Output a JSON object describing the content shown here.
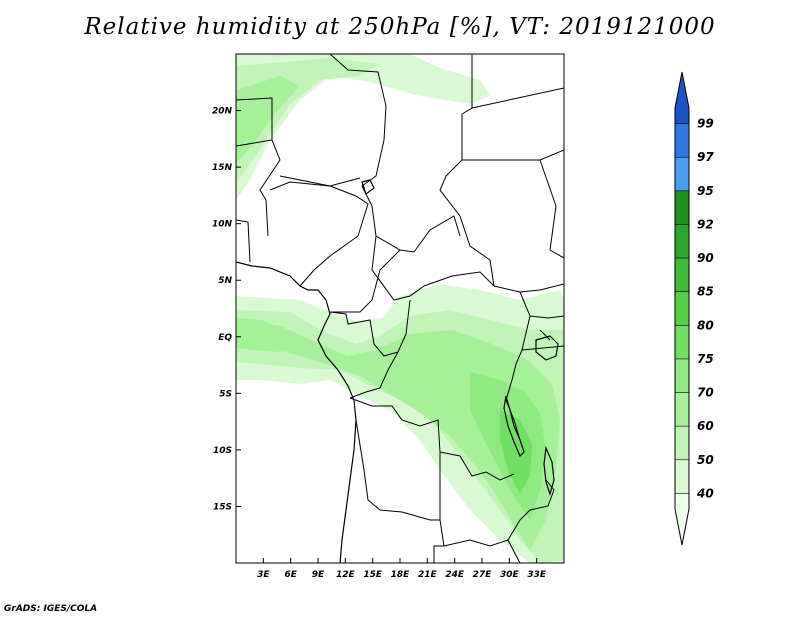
{
  "title": "Relative humidity at 250hPa [%], VT: 2019121000",
  "credit": "GrADS: IGES/COLA",
  "map": {
    "lon_range": [
      0,
      36
    ],
    "lat_range": [
      -20,
      25
    ],
    "lon_ticks": [
      {
        "value": 3,
        "label": "3E"
      },
      {
        "value": 6,
        "label": "6E"
      },
      {
        "value": 9,
        "label": "9E"
      },
      {
        "value": 12,
        "label": "12E"
      },
      {
        "value": 15,
        "label": "15E"
      },
      {
        "value": 18,
        "label": "18E"
      },
      {
        "value": 21,
        "label": "21E"
      },
      {
        "value": 24,
        "label": "24E"
      },
      {
        "value": 27,
        "label": "27E"
      },
      {
        "value": 30,
        "label": "30E"
      },
      {
        "value": 33,
        "label": "33E"
      }
    ],
    "lat_ticks": [
      {
        "value": 20,
        "label": "20N"
      },
      {
        "value": 15,
        "label": "15N"
      },
      {
        "value": 10,
        "label": "10N"
      },
      {
        "value": 5,
        "label": "5N"
      },
      {
        "value": 0,
        "label": "EQ"
      },
      {
        "value": -5,
        "label": "5S"
      },
      {
        "value": -10,
        "label": "10S"
      },
      {
        "value": -15,
        "label": "15S"
      }
    ]
  },
  "colorbar": {
    "levels": [
      "40",
      "50",
      "60",
      "70",
      "75",
      "80",
      "85",
      "90",
      "92",
      "95",
      "97",
      "99"
    ],
    "colors": [
      "#effdec",
      "#d8f9d2",
      "#c1f5b8",
      "#a6f09a",
      "#8de980",
      "#6fe061",
      "#52d148",
      "#3cbd37",
      "#28a829",
      "#1a921e",
      "#4a9ef0",
      "#2f78e0",
      "#1a52c8"
    ]
  }
}
